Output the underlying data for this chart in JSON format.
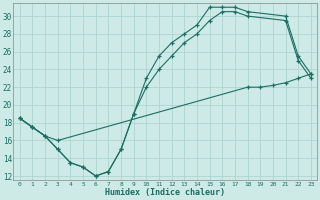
{
  "xlabel": "Humidex (Indice chaleur)",
  "ylabel": "",
  "bg_color": "#ceeae6",
  "grid_color": "#aed4d0",
  "line_color": "#1a6e64",
  "xlim": [
    -0.5,
    23.5
  ],
  "ylim": [
    11.5,
    31.5
  ],
  "xticks": [
    0,
    1,
    2,
    3,
    4,
    5,
    6,
    7,
    8,
    9,
    10,
    11,
    12,
    13,
    14,
    15,
    16,
    17,
    18,
    19,
    20,
    21,
    22,
    23
  ],
  "yticks": [
    12,
    14,
    16,
    18,
    20,
    22,
    24,
    26,
    28,
    30
  ],
  "line1_x": [
    0,
    1,
    2,
    3,
    4,
    5,
    6,
    7,
    8,
    9,
    10,
    11,
    12,
    13,
    14,
    15,
    16,
    17,
    18,
    21,
    22,
    23
  ],
  "line1_y": [
    18.5,
    17.5,
    16.5,
    15.0,
    13.5,
    13.0,
    12.0,
    12.5,
    15.0,
    19.0,
    23.0,
    25.5,
    27.0,
    28.0,
    29.0,
    31.0,
    31.0,
    31.0,
    30.5,
    30.0,
    25.5,
    23.5
  ],
  "line2_x": [
    0,
    1,
    2,
    3,
    4,
    5,
    6,
    7,
    8,
    9,
    10,
    11,
    12,
    13,
    14,
    15,
    16,
    17,
    18,
    21,
    22,
    23
  ],
  "line2_y": [
    18.5,
    17.5,
    16.5,
    15.0,
    13.5,
    13.0,
    12.0,
    12.5,
    15.0,
    19.0,
    22.0,
    24.0,
    25.5,
    27.0,
    28.0,
    29.5,
    30.5,
    30.5,
    30.0,
    29.5,
    25.0,
    23.0
  ],
  "line3_x": [
    0,
    1,
    2,
    3,
    18,
    19,
    20,
    21,
    22,
    23
  ],
  "line3_y": [
    18.5,
    17.5,
    16.5,
    16.0,
    22.0,
    22.0,
    22.2,
    22.5,
    23.0,
    23.5
  ]
}
